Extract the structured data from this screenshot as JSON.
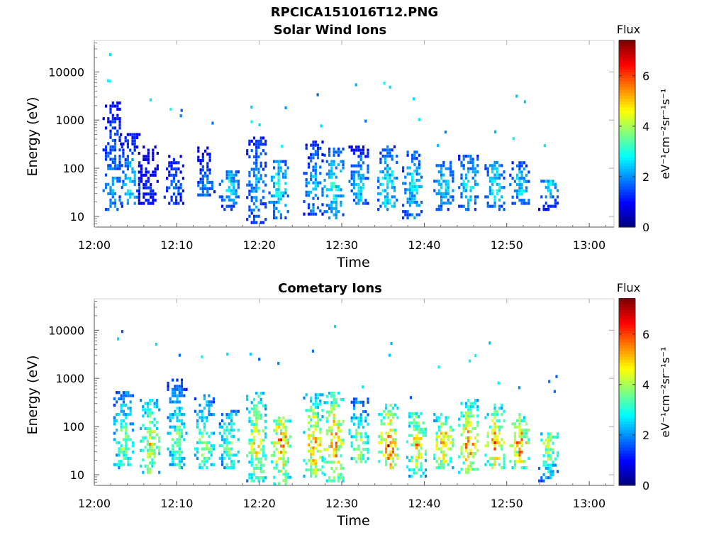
{
  "figure_title": "RPCICA151016T12.PNG",
  "chart_data": [
    {
      "type": "heatmap",
      "title": "Solar Wind Ions",
      "xlabel": "Time",
      "ylabel": "Energy (eV)",
      "x_ticks": [
        "12:00",
        "12:10",
        "12:20",
        "12:30",
        "12:40",
        "12:50",
        "13:00"
      ],
      "x_range_min": [
        0,
        63
      ],
      "y_ticks": [
        "10",
        "100",
        "1000",
        "10000"
      ],
      "y_range_ev": [
        6,
        45000
      ],
      "y_scale": "log",
      "colorbar": {
        "label": "Flux",
        "unit": "eV⁻¹cm⁻²sr⁻¹s⁻¹",
        "ticks": [
          "0",
          "2",
          "4",
          "6"
        ],
        "range": [
          0,
          7.4
        ],
        "colormap": "jet"
      },
      "bursts": [
        {
          "t": 2.2,
          "lo": 15,
          "hi": 3000,
          "peak": 2.5
        },
        {
          "t": 4.3,
          "lo": 20,
          "hi": 600,
          "peak": 2.8
        },
        {
          "t": 6.5,
          "lo": 20,
          "hi": 300,
          "peak": 1.4
        },
        {
          "t": 9.6,
          "lo": 20,
          "hi": 200,
          "peak": 2.0
        },
        {
          "t": 13.4,
          "lo": 30,
          "hi": 300,
          "peak": 2.2
        },
        {
          "t": 16.3,
          "lo": 15,
          "hi": 100,
          "peak": 3.0
        },
        {
          "t": 19.6,
          "lo": 8,
          "hi": 500,
          "peak": 2.5
        },
        {
          "t": 22.3,
          "lo": 10,
          "hi": 150,
          "peak": 3.3
        },
        {
          "t": 26.5,
          "lo": 12,
          "hi": 400,
          "peak": 2.5
        },
        {
          "t": 29.0,
          "lo": 10,
          "hi": 300,
          "peak": 3.2
        },
        {
          "t": 32.0,
          "lo": 20,
          "hi": 300,
          "peak": 2.8
        },
        {
          "t": 35.5,
          "lo": 15,
          "hi": 300,
          "peak": 3.4
        },
        {
          "t": 38.5,
          "lo": 10,
          "hi": 250,
          "peak": 3.0
        },
        {
          "t": 42.3,
          "lo": 15,
          "hi": 150,
          "peak": 3.0
        },
        {
          "t": 45.3,
          "lo": 15,
          "hi": 200,
          "peak": 3.2
        },
        {
          "t": 48.5,
          "lo": 15,
          "hi": 150,
          "peak": 3.2
        },
        {
          "t": 51.5,
          "lo": 20,
          "hi": 150,
          "peak": 3.0
        },
        {
          "t": 55.0,
          "lo": 15,
          "hi": 60,
          "peak": 3.0
        }
      ]
    },
    {
      "type": "heatmap",
      "title": "Cometary Ions",
      "xlabel": "Time",
      "ylabel": "Energy (eV)",
      "x_ticks": [
        "12:00",
        "12:10",
        "12:20",
        "12:30",
        "12:40",
        "12:50",
        "13:00"
      ],
      "x_range_min": [
        0,
        63
      ],
      "y_ticks": [
        "10",
        "100",
        "1000",
        "10000"
      ],
      "y_range_ev": [
        6,
        45000
      ],
      "y_scale": "log",
      "colorbar": {
        "label": "Flux",
        "unit": "eV⁻¹cm⁻²sr⁻¹s⁻¹",
        "ticks": [
          "0",
          "2",
          "4",
          "6"
        ],
        "range": [
          0,
          7.4
        ],
        "colormap": "jet"
      },
      "bursts": [
        {
          "t": 3.5,
          "lo": 15,
          "hi": 600,
          "peak": 4.2
        },
        {
          "t": 6.7,
          "lo": 12,
          "hi": 400,
          "peak": 5.0
        },
        {
          "t": 10.0,
          "lo": 15,
          "hi": 1000,
          "peak": 4.0
        },
        {
          "t": 13.3,
          "lo": 15,
          "hi": 500,
          "peak": 4.3
        },
        {
          "t": 16.3,
          "lo": 15,
          "hi": 250,
          "peak": 4.2
        },
        {
          "t": 19.6,
          "lo": 8,
          "hi": 600,
          "peak": 5.2
        },
        {
          "t": 22.6,
          "lo": 7,
          "hi": 200,
          "peak": 6.3
        },
        {
          "t": 26.5,
          "lo": 10,
          "hi": 500,
          "peak": 5.8
        },
        {
          "t": 29.0,
          "lo": 8,
          "hi": 600,
          "peak": 6.0
        },
        {
          "t": 32.0,
          "lo": 20,
          "hi": 400,
          "peak": 4.5
        },
        {
          "t": 35.6,
          "lo": 15,
          "hi": 300,
          "peak": 6.6
        },
        {
          "t": 39.0,
          "lo": 10,
          "hi": 200,
          "peak": 5.5
        },
        {
          "t": 42.3,
          "lo": 15,
          "hi": 200,
          "peak": 6.0
        },
        {
          "t": 45.3,
          "lo": 12,
          "hi": 400,
          "peak": 6.0
        },
        {
          "t": 48.5,
          "lo": 15,
          "hi": 300,
          "peak": 6.2
        },
        {
          "t": 51.5,
          "lo": 15,
          "hi": 200,
          "peak": 6.2
        },
        {
          "t": 55.0,
          "lo": 8,
          "hi": 80,
          "peak": 4.8
        }
      ]
    }
  ]
}
